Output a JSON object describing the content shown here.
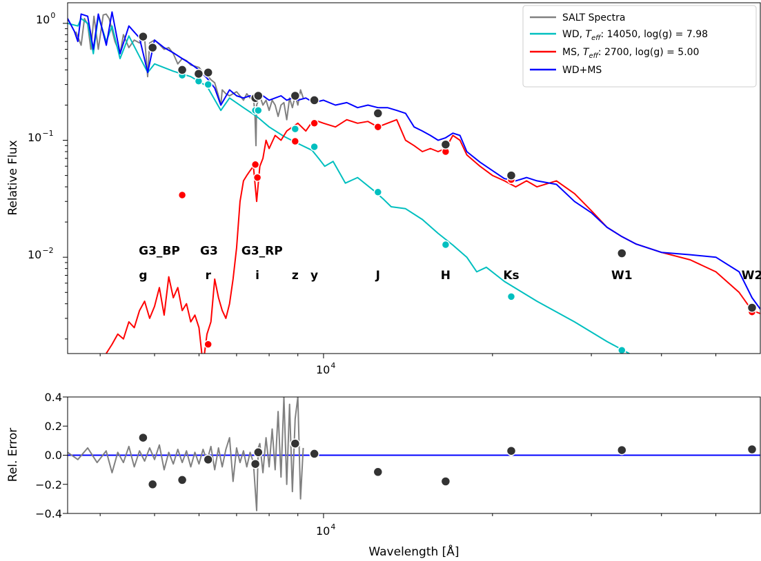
{
  "chart_data": [
    {
      "type": "line",
      "panel": "spectrum",
      "xlabel": "",
      "ylabel": "Relative Flux",
      "xscale": "log",
      "yscale": "log",
      "xlim": [
        3500,
        60000
      ],
      "ylim": [
        0.0015,
        1.5
      ],
      "x_tick_label": "10",
      "x_tick_exp": "4",
      "y_ticks": [
        {
          "value": 1.0,
          "base": "10",
          "exp": "0"
        },
        {
          "value": 0.1,
          "base": "10",
          "exp": "−1"
        },
        {
          "value": 0.01,
          "base": "10",
          "exp": "−2"
        }
      ],
      "legend": {
        "position": "top-right",
        "entries": [
          {
            "label": "SALT Spectra",
            "color": "#808080"
          },
          {
            "label_prefix": "WD, ",
            "teff_symbol": "T",
            "teff_sub": "eff",
            "label_suffix": ": 14050, log(g) = 7.98",
            "color": "#00bfbf"
          },
          {
            "label_prefix": "MS, ",
            "teff_symbol": "T",
            "teff_sub": "eff",
            "label_suffix": ": 2700, log(g) = 5.00",
            "color": "#ff0000"
          },
          {
            "label": "WD+MS",
            "color": "#0000ff"
          }
        ]
      },
      "band_labels": [
        {
          "text": "G3_BP",
          "x": 5100,
          "y": 0.0105
        },
        {
          "text": "G3",
          "x": 6250,
          "y": 0.0105
        },
        {
          "text": "G3_RP",
          "x": 7770,
          "y": 0.0105
        },
        {
          "text": "g",
          "x": 4770,
          "y": 0.0065
        },
        {
          "text": "r",
          "x": 6230,
          "y": 0.0065
        },
        {
          "text": "i",
          "x": 7625,
          "y": 0.0065
        },
        {
          "text": "z",
          "x": 8900,
          "y": 0.0065
        },
        {
          "text": "y",
          "x": 9630,
          "y": 0.0065
        },
        {
          "text": "J",
          "x": 12500,
          "y": 0.0065
        },
        {
          "text": "H",
          "x": 16500,
          "y": 0.0065
        },
        {
          "text": "Ks",
          "x": 21600,
          "y": 0.0065
        },
        {
          "text": "W1",
          "x": 34000,
          "y": 0.0065
        },
        {
          "text": "W2",
          "x": 58000,
          "y": 0.0065
        }
      ],
      "series": [
        {
          "name": "SALT Spectra",
          "color": "#808080",
          "x": [
            3620,
            3700,
            3750,
            3800,
            3850,
            3900,
            3970,
            4050,
            4100,
            4150,
            4250,
            4340,
            4400,
            4500,
            4600,
            4700,
            4800,
            4860,
            4900,
            5000,
            5100,
            5200,
            5300,
            5400,
            5500,
            5600,
            5700,
            5800,
            5900,
            6000,
            6100,
            6200,
            6300,
            6400,
            6500,
            6563,
            6600,
            6700,
            6800,
            6900,
            7000,
            7100,
            7200,
            7300,
            7400,
            7500,
            7550,
            7580,
            7600,
            7650,
            7700,
            7800,
            7900,
            8000,
            8100,
            8200,
            8300,
            8400,
            8500,
            8600,
            8700,
            8800,
            8900,
            9000,
            9100,
            9200
          ],
          "y": [
            0.85,
            0.65,
            1.1,
            0.98,
            0.6,
            1.15,
            0.6,
            1.18,
            1.2,
            1.1,
            0.7,
            0.55,
            0.8,
            0.62,
            0.72,
            0.68,
            0.75,
            0.35,
            0.68,
            0.72,
            0.66,
            0.6,
            0.62,
            0.55,
            0.45,
            0.5,
            0.48,
            0.44,
            0.43,
            0.42,
            0.38,
            0.36,
            0.33,
            0.31,
            0.24,
            0.2,
            0.27,
            0.25,
            0.24,
            0.25,
            0.26,
            0.24,
            0.22,
            0.25,
            0.23,
            0.24,
            0.16,
            0.09,
            0.2,
            0.22,
            0.24,
            0.2,
            0.22,
            0.18,
            0.22,
            0.2,
            0.16,
            0.2,
            0.21,
            0.15,
            0.23,
            0.19,
            0.24,
            0.2,
            0.27,
            0.23
          ]
        },
        {
          "name": "WD, Teff: 14050, log(g) = 7.98",
          "color": "#00bfbf",
          "x": [
            3500,
            3650,
            3700,
            3800,
            3890,
            3970,
            4102,
            4200,
            4340,
            4500,
            4861,
            5000,
            5400,
            5800,
            6200,
            6563,
            6800,
            7200,
            7600,
            8000,
            8500,
            9000,
            9545,
            9800,
            10049,
            10400,
            10938,
            11500,
            12300,
            12818,
            13200,
            14000,
            15000,
            16000,
            17000,
            18000,
            18751,
            19500,
            21000,
            24000,
            28000,
            32000,
            36000
          ],
          "y": [
            1.0,
            0.95,
            1.1,
            1.0,
            0.55,
            1.15,
            0.7,
            0.95,
            0.5,
            0.78,
            0.38,
            0.45,
            0.39,
            0.35,
            0.29,
            0.18,
            0.23,
            0.19,
            0.16,
            0.13,
            0.108,
            0.094,
            0.082,
            0.07,
            0.06,
            0.066,
            0.043,
            0.048,
            0.037,
            0.031,
            0.027,
            0.026,
            0.021,
            0.016,
            0.0127,
            0.01,
            0.0075,
            0.0082,
            0.0062,
            0.0042,
            0.0028,
            0.0019,
            0.0014
          ]
        },
        {
          "name": "MS, Teff: 2700, log(g) = 5.00",
          "color": "#ff0000",
          "x": [
            4100,
            4200,
            4300,
            4400,
            4500,
            4600,
            4700,
            4800,
            4900,
            5000,
            5100,
            5200,
            5300,
            5400,
            5500,
            5600,
            5700,
            5800,
            5900,
            6000,
            6100,
            6200,
            6300,
            6400,
            6500,
            6600,
            6700,
            6800,
            6900,
            7000,
            7100,
            7200,
            7300,
            7400,
            7500,
            7600,
            7700,
            7800,
            7900,
            8000,
            8200,
            8400,
            8600,
            8800,
            9000,
            9300,
            9600,
            10000,
            10500,
            11000,
            11500,
            12000,
            12500,
            13000,
            13500,
            14000,
            14500,
            15000,
            15500,
            16000,
            16500,
            17000,
            17500,
            18000,
            19000,
            20000,
            21000,
            22000,
            23000,
            24000,
            26000,
            28000,
            30000,
            32000,
            34000,
            36000,
            40000,
            45000,
            50000,
            55000,
            58000,
            60000
          ],
          "y": [
            0.0015,
            0.0018,
            0.0022,
            0.002,
            0.0028,
            0.0025,
            0.0035,
            0.0042,
            0.003,
            0.0038,
            0.0055,
            0.0032,
            0.0068,
            0.0045,
            0.0055,
            0.0035,
            0.004,
            0.0028,
            0.0032,
            0.0025,
            0.0012,
            0.0022,
            0.0028,
            0.0065,
            0.0045,
            0.0035,
            0.003,
            0.004,
            0.0065,
            0.012,
            0.03,
            0.045,
            0.05,
            0.055,
            0.06,
            0.03,
            0.06,
            0.07,
            0.1,
            0.085,
            0.11,
            0.1,
            0.12,
            0.13,
            0.14,
            0.12,
            0.15,
            0.14,
            0.13,
            0.15,
            0.14,
            0.145,
            0.13,
            0.14,
            0.15,
            0.1,
            0.09,
            0.08,
            0.085,
            0.08,
            0.085,
            0.11,
            0.1,
            0.075,
            0.06,
            0.05,
            0.045,
            0.04,
            0.045,
            0.04,
            0.045,
            0.035,
            0.025,
            0.018,
            0.015,
            0.013,
            0.011,
            0.0095,
            0.0075,
            0.005,
            0.0035,
            0.0033
          ]
        },
        {
          "name": "WD+MS",
          "color": "#0000ff",
          "x": [
            3500,
            3600,
            3650,
            3700,
            3800,
            3890,
            3970,
            4102,
            4200,
            4340,
            4500,
            4700,
            4861,
            5000,
            5200,
            5400,
            5600,
            5800,
            6000,
            6200,
            6400,
            6563,
            6800,
            7000,
            7200,
            7400,
            7600,
            7800,
            8000,
            8200,
            8400,
            8600,
            8800,
            9000,
            9300,
            9600,
            10000,
            10500,
            11000,
            11500,
            12000,
            12500,
            13000,
            13500,
            14000,
            14500,
            15000,
            15500,
            16000,
            16500,
            17000,
            17500,
            18000,
            19000,
            20000,
            21000,
            22000,
            23000,
            24000,
            26000,
            28000,
            30000,
            32000,
            34000,
            36000,
            40000,
            45000,
            50000,
            55000,
            58000,
            60000
          ],
          "y": [
            1.1,
            0.85,
            0.7,
            1.2,
            1.15,
            0.6,
            1.2,
            0.65,
            1.25,
            0.55,
            0.95,
            0.75,
            0.38,
            0.72,
            0.62,
            0.56,
            0.5,
            0.45,
            0.4,
            0.34,
            0.28,
            0.2,
            0.27,
            0.24,
            0.23,
            0.24,
            0.22,
            0.24,
            0.22,
            0.23,
            0.24,
            0.22,
            0.23,
            0.22,
            0.23,
            0.21,
            0.22,
            0.2,
            0.21,
            0.19,
            0.2,
            0.19,
            0.19,
            0.18,
            0.17,
            0.13,
            0.12,
            0.11,
            0.1,
            0.105,
            0.115,
            0.11,
            0.08,
            0.065,
            0.055,
            0.047,
            0.045,
            0.048,
            0.045,
            0.042,
            0.03,
            0.024,
            0.018,
            0.015,
            0.013,
            0.011,
            0.0105,
            0.01,
            0.0075,
            0.0045,
            0.0036
          ]
        }
      ],
      "photometry": {
        "observed": {
          "color": "#333333",
          "x": [
            4770,
            4960,
            5600,
            5990,
            6230,
            7560,
            7650,
            8900,
            9630,
            12500,
            16500,
            21600,
            34000,
            58000
          ],
          "y": [
            0.77,
            0.62,
            0.4,
            0.37,
            0.38,
            0.23,
            0.24,
            0.24,
            0.22,
            0.17,
            0.092,
            0.05,
            0.0108,
            0.0037
          ]
        },
        "wd_model": {
          "color": "#00bfbf",
          "x": [
            5600,
            5990,
            6230,
            7560,
            7650,
            8900,
            9630,
            12500,
            16500,
            21600,
            34000,
            58000
          ],
          "y": [
            0.36,
            0.32,
            0.3,
            0.18,
            0.18,
            0.125,
            0.088,
            0.036,
            0.0128,
            0.0046,
            0.0016,
            0.0011
          ]
        },
        "ms_model": {
          "color": "#ff0000",
          "x": [
            5600,
            6230,
            7560,
            7625,
            8900,
            9630,
            12500,
            16500,
            21600,
            34000,
            58000
          ],
          "y": [
            0.034,
            0.0018,
            0.062,
            0.048,
            0.098,
            0.14,
            0.13,
            0.08,
            0.046,
            0.0105,
            0.0034
          ]
        }
      }
    },
    {
      "type": "scatter",
      "panel": "residuals",
      "xlabel": "Wavelength [Å]",
      "ylabel": "Rel. Error",
      "xscale": "log",
      "xlim": [
        3500,
        60000
      ],
      "ylim": [
        -0.4,
        0.4
      ],
      "x_tick_label": "10",
      "x_tick_exp": "4",
      "y_ticks": [
        "0.4",
        "0.2",
        "0.0",
        "−0.2",
        "−0.4"
      ],
      "zero_line_color": "#0000ff",
      "spectrum_residual": {
        "color": "#808080",
        "x": [
          3500,
          3650,
          3800,
          3950,
          4100,
          4200,
          4300,
          4400,
          4500,
          4600,
          4700,
          4800,
          4900,
          5000,
          5100,
          5200,
          5300,
          5400,
          5500,
          5600,
          5700,
          5800,
          5900,
          6000,
          6100,
          6200,
          6300,
          6400,
          6500,
          6600,
          6700,
          6800,
          6900,
          7000,
          7100,
          7200,
          7300,
          7400,
          7500,
          7600,
          7650,
          7700,
          7800,
          7900,
          8000,
          8100,
          8200,
          8300,
          8400,
          8500,
          8600,
          8700,
          8800,
          8900,
          9000,
          9100,
          9200
        ],
        "y": [
          0.02,
          -0.03,
          0.05,
          -0.05,
          0.03,
          -0.12,
          0.02,
          -0.05,
          0.06,
          -0.08,
          0.03,
          -0.04,
          0.05,
          -0.03,
          0.07,
          -0.1,
          0.02,
          -0.06,
          0.04,
          -0.05,
          0.03,
          -0.08,
          0.02,
          -0.06,
          0.04,
          -0.04,
          0.06,
          -0.1,
          0.05,
          -0.08,
          0.04,
          0.12,
          -0.18,
          0.05,
          -0.05,
          0.03,
          -0.08,
          0.02,
          -0.05,
          -0.38,
          0.05,
          0.08,
          -0.12,
          0.12,
          -0.08,
          0.18,
          -0.1,
          0.3,
          -0.15,
          0.4,
          -0.2,
          0.35,
          -0.25,
          0.25,
          0.4,
          -0.3,
          0.05
        ]
      },
      "photometry_residuals": {
        "color": "#333333",
        "x": [
          4770,
          4960,
          5600,
          6230,
          7560,
          7650,
          8900,
          9630,
          12500,
          16500,
          21600,
          34000,
          58000
        ],
        "y": [
          0.12,
          -0.2,
          -0.17,
          -0.03,
          -0.06,
          0.02,
          0.08,
          0.01,
          -0.115,
          -0.18,
          0.03,
          0.035,
          0.04
        ]
      }
    }
  ]
}
